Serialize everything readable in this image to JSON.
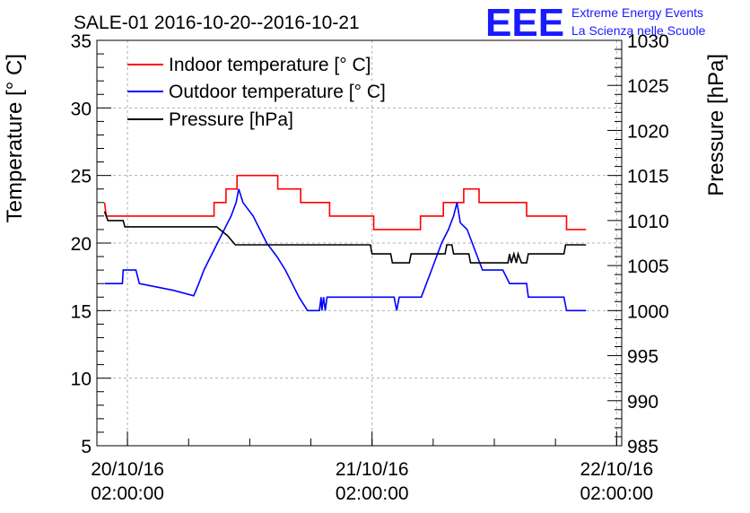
{
  "chart_data": {
    "type": "line",
    "title": "SALE-01 2016-10-20--2016-10-21",
    "logo": {
      "letters": "EEE",
      "line1": "Extreme Energy Events",
      "line2": "La Scienza nelle Scuole"
    },
    "ylabel": "Temperature [° C]",
    "y2label": "Pressure [hPa]",
    "ylim": [
      5,
      35
    ],
    "y2lim": [
      985,
      1030
    ],
    "xlim": [
      "2016-10-19 23:00",
      "2016-10-22 02:30"
    ],
    "yticks": [
      "5",
      "10",
      "15",
      "20",
      "25",
      "30",
      "35"
    ],
    "y2ticks": [
      "985",
      "990",
      "995",
      "1000",
      "1005",
      "1010",
      "1015",
      "1020",
      "1025",
      "1030"
    ],
    "xticks": [
      {
        "date": "20/10/16",
        "time": "02:00:00",
        "at": "2016-10-20 02:00"
      },
      {
        "date": "21/10/16",
        "time": "02:00:00",
        "at": "2016-10-21 02:00"
      },
      {
        "date": "22/10/16",
        "time": "02:00:00",
        "at": "2016-10-22 02:00"
      }
    ],
    "grid": true,
    "legend_position": "top-left",
    "colors": {
      "indoor": "#ff0000",
      "outdoor": "#0000ff",
      "pressure": "#000000",
      "grid": "#b0b0b0"
    },
    "series": [
      {
        "name": "Indoor temperature [° C]",
        "axis": "left",
        "color": "#ff0000",
        "points": [
          [
            "2016-10-19 23:45",
            23
          ],
          [
            "2016-10-19 23:55",
            22
          ],
          [
            "2016-10-20 10:30",
            22
          ],
          [
            "2016-10-20 10:30",
            23
          ],
          [
            "2016-10-20 11:40",
            23
          ],
          [
            "2016-10-20 11:40",
            24
          ],
          [
            "2016-10-20 12:45",
            24
          ],
          [
            "2016-10-20 12:45",
            25
          ],
          [
            "2016-10-20 16:45",
            25
          ],
          [
            "2016-10-20 16:45",
            24
          ],
          [
            "2016-10-20 19:00",
            24
          ],
          [
            "2016-10-20 19:00",
            23
          ],
          [
            "2016-10-20 21:50",
            23
          ],
          [
            "2016-10-20 21:50",
            22
          ],
          [
            "2016-10-21 02:10",
            22
          ],
          [
            "2016-10-21 02:10",
            21
          ],
          [
            "2016-10-21 06:45",
            21
          ],
          [
            "2016-10-21 06:45",
            22
          ],
          [
            "2016-10-21 09:00",
            22
          ],
          [
            "2016-10-21 09:00",
            23
          ],
          [
            "2016-10-21 11:00",
            23
          ],
          [
            "2016-10-21 11:00",
            24
          ],
          [
            "2016-10-21 12:30",
            24
          ],
          [
            "2016-10-21 12:30",
            23
          ],
          [
            "2016-10-21 17:10",
            23
          ],
          [
            "2016-10-21 17:10",
            22
          ],
          [
            "2016-10-21 21:05",
            22
          ],
          [
            "2016-10-21 21:05",
            21
          ],
          [
            "2016-10-21 23:00",
            21
          ]
        ]
      },
      {
        "name": "Outdoor temperature [° C]",
        "axis": "left",
        "color": "#0000ff",
        "points": [
          [
            "2016-10-19 23:45",
            17
          ],
          [
            "2016-10-20 01:30",
            17
          ],
          [
            "2016-10-20 01:35",
            18
          ],
          [
            "2016-10-20 02:50",
            18
          ],
          [
            "2016-10-20 03:10",
            17
          ],
          [
            "2016-10-20 04:30",
            16.8
          ],
          [
            "2016-10-20 06:30",
            16.5
          ],
          [
            "2016-10-20 08:30",
            16.1
          ],
          [
            "2016-10-20 09:00",
            17
          ],
          [
            "2016-10-20 09:30",
            18
          ],
          [
            "2016-10-20 10:10",
            19
          ],
          [
            "2016-10-20 10:50",
            20
          ],
          [
            "2016-10-20 11:30",
            21
          ],
          [
            "2016-10-20 12:10",
            22
          ],
          [
            "2016-10-20 12:40",
            23
          ],
          [
            "2016-10-20 12:55",
            24
          ],
          [
            "2016-10-20 13:20",
            23
          ],
          [
            "2016-10-20 14:20",
            22
          ],
          [
            "2016-10-20 15:00",
            21
          ],
          [
            "2016-10-20 15:40",
            20
          ],
          [
            "2016-10-20 16:40",
            19
          ],
          [
            "2016-10-20 17:30",
            18
          ],
          [
            "2016-10-20 18:10",
            17
          ],
          [
            "2016-10-20 18:50",
            16
          ],
          [
            "2016-10-20 19:40",
            15
          ],
          [
            "2016-10-20 20:50",
            15
          ],
          [
            "2016-10-20 21:00",
            16
          ],
          [
            "2016-10-20 21:05",
            15
          ],
          [
            "2016-10-20 21:15",
            16
          ],
          [
            "2016-10-20 21:25",
            15
          ],
          [
            "2016-10-20 21:35",
            16
          ],
          [
            "2016-10-21 04:10",
            16
          ],
          [
            "2016-10-21 04:25",
            15
          ],
          [
            "2016-10-21 04:40",
            16
          ],
          [
            "2016-10-21 06:50",
            16
          ],
          [
            "2016-10-21 07:20",
            17
          ],
          [
            "2016-10-21 07:50",
            18
          ],
          [
            "2016-10-21 08:20",
            19
          ],
          [
            "2016-10-21 08:50",
            20
          ],
          [
            "2016-10-21 09:30",
            21
          ],
          [
            "2016-10-21 10:00",
            22
          ],
          [
            "2016-10-21 10:20",
            23
          ],
          [
            "2016-10-21 10:40",
            21.5
          ],
          [
            "2016-10-21 11:20",
            21
          ],
          [
            "2016-10-21 11:50",
            20
          ],
          [
            "2016-10-21 12:20",
            19
          ],
          [
            "2016-10-21 12:50",
            18
          ],
          [
            "2016-10-21 14:50",
            18
          ],
          [
            "2016-10-21 15:30",
            17
          ],
          [
            "2016-10-21 17:10",
            17
          ],
          [
            "2016-10-21 17:20",
            16
          ],
          [
            "2016-10-21 20:50",
            16
          ],
          [
            "2016-10-21 21:05",
            15
          ],
          [
            "2016-10-21 23:00",
            15
          ]
        ]
      },
      {
        "name": "Pressure [hPa]",
        "axis": "right",
        "color": "#000000",
        "points": [
          [
            "2016-10-19 23:45",
            1011
          ],
          [
            "2016-10-20 00:05",
            1010
          ],
          [
            "2016-10-20 01:35",
            1010
          ],
          [
            "2016-10-20 01:45",
            1009.3
          ],
          [
            "2016-10-20 10:45",
            1009.3
          ],
          [
            "2016-10-20 11:50",
            1008.3
          ],
          [
            "2016-10-20 12:35",
            1007.3
          ],
          [
            "2016-10-20 21:50",
            1007.3
          ],
          [
            "2016-10-21 01:50",
            1007.3
          ],
          [
            "2016-10-21 02:00",
            1006.3
          ],
          [
            "2016-10-21 03:50",
            1006.3
          ],
          [
            "2016-10-21 04:00",
            1005.3
          ],
          [
            "2016-10-21 05:40",
            1005.3
          ],
          [
            "2016-10-21 05:50",
            1006.3
          ],
          [
            "2016-10-21 09:10",
            1006.3
          ],
          [
            "2016-10-21 09:20",
            1007.3
          ],
          [
            "2016-10-21 09:50",
            1007.3
          ],
          [
            "2016-10-21 10:00",
            1006.3
          ],
          [
            "2016-10-21 11:30",
            1006.3
          ],
          [
            "2016-10-21 11:40",
            1005.3
          ],
          [
            "2016-10-21 15:20",
            1005.3
          ],
          [
            "2016-10-21 15:30",
            1006.3
          ],
          [
            "2016-10-21 15:40",
            1005.3
          ],
          [
            "2016-10-21 15:55",
            1006.3
          ],
          [
            "2016-10-21 16:10",
            1005.3
          ],
          [
            "2016-10-21 16:20",
            1006.3
          ],
          [
            "2016-10-21 16:40",
            1005.3
          ],
          [
            "2016-10-21 17:10",
            1005.3
          ],
          [
            "2016-10-21 17:20",
            1006.3
          ],
          [
            "2016-10-21 20:50",
            1006.3
          ],
          [
            "2016-10-21 21:00",
            1007.3
          ],
          [
            "2016-10-21 23:00",
            1007.3
          ]
        ]
      }
    ]
  }
}
